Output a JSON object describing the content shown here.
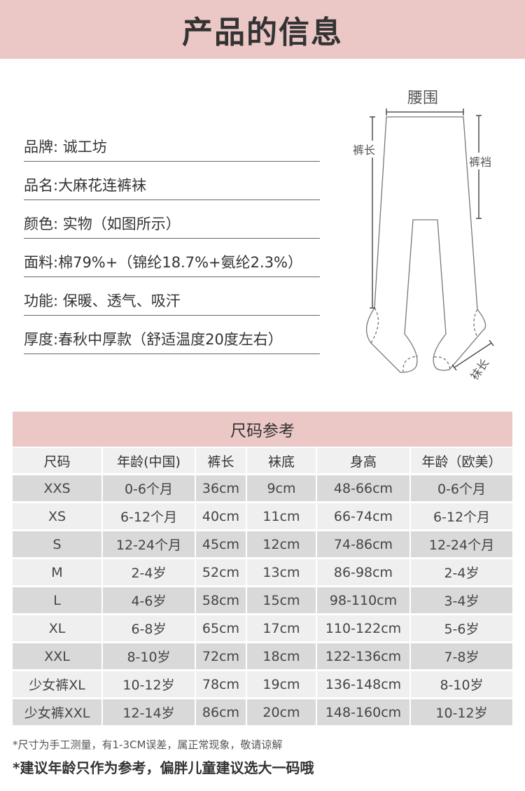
{
  "banner": {
    "title": "产品的信息"
  },
  "specs": [
    {
      "key": "品牌:",
      "value": " 诚工坊"
    },
    {
      "key": "品名:",
      "value": "大麻花连裤袜"
    },
    {
      "key": "颜色:",
      "value": " 实物（如图所示）"
    },
    {
      "key": "面料:",
      "value": "棉79%+（锦纶18.7%+氨纶2.3%）"
    },
    {
      "key": "功能:",
      "value": " 保暖、透气、吸汗"
    },
    {
      "key": "厚度:",
      "value": "春秋中厚款（舒适温度20度左右）"
    }
  ],
  "diagram": {
    "waist": "腰围",
    "length": "裤长",
    "crotch": "裤裆",
    "sock": "袜长"
  },
  "size_table": {
    "title": "尺码参考",
    "headers": [
      "尺码",
      "年龄(中国)",
      "裤长",
      "袜底",
      "身高",
      "年龄（欧美）"
    ],
    "rows": [
      [
        "XXS",
        "0-6个月",
        "36cm",
        "9cm",
        "48-66cm",
        "0-6个月"
      ],
      [
        "XS",
        "6-12个月",
        "40cm",
        "11cm",
        "66-74cm",
        "6-12个月"
      ],
      [
        "S",
        "12-24个月",
        "45cm",
        "12cm",
        "74-86cm",
        "12-24个月"
      ],
      [
        "M",
        "2-4岁",
        "52cm",
        "13cm",
        "86-98cm",
        "2-4岁"
      ],
      [
        "L",
        "4-6岁",
        "58cm",
        "15cm",
        "98-110cm",
        "3-4岁"
      ],
      [
        "XL",
        "6-8岁",
        "65cm",
        "17cm",
        "110-122cm",
        "5-6岁"
      ],
      [
        "XXL",
        "8-10岁",
        "72cm",
        "18cm",
        "122-136cm",
        "7-8岁"
      ],
      [
        "少女裤XL",
        "10-12岁",
        "78cm",
        "19cm",
        "136-148cm",
        "8-10岁"
      ],
      [
        "少女裤XXL",
        "12-14岁",
        "86cm",
        "20cm",
        "148-160cm",
        "10-12岁"
      ]
    ]
  },
  "notes": {
    "note1": "*尺寸为手工测量，有1-3CM误差，属正常现象，敬请谅解",
    "note2": "*建议年龄只作为参考，偏胖儿童建议选大一码哦"
  },
  "colors": {
    "banner": "#ebc8c6",
    "row_dark": "#d9d9d9",
    "row_light": "#efefef"
  }
}
